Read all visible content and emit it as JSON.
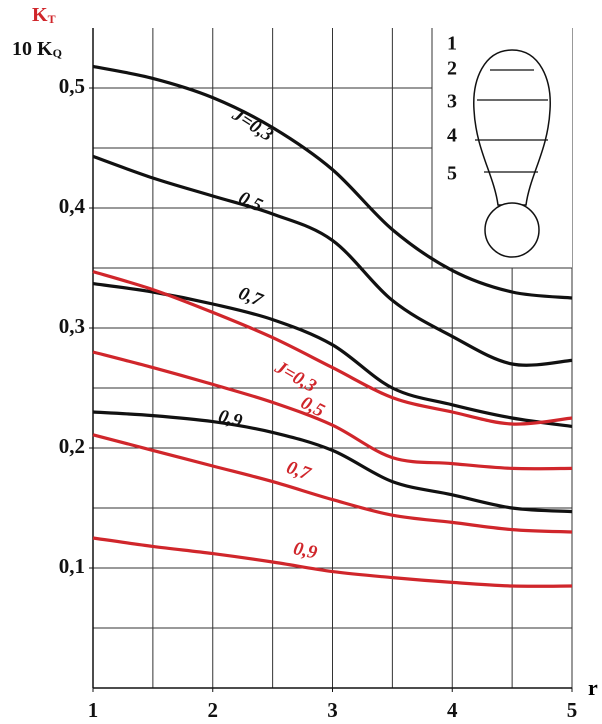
{
  "chart_data": {
    "type": "line",
    "y_label_kt": {
      "text": "K",
      "sub": "T",
      "color": "#d0262b"
    },
    "y_label_kq": {
      "text": "10 K",
      "sub": "Q",
      "color": "#111111"
    },
    "x_label": "r",
    "x": [
      1,
      1.5,
      2,
      2.5,
      3,
      3.5,
      4,
      4.5,
      5
    ],
    "xlim": [
      1,
      5
    ],
    "xticks": [
      1,
      2,
      3,
      4,
      5
    ],
    "x_grid": [
      1.5,
      2,
      2.5,
      3,
      3.5,
      4,
      4.5,
      5
    ],
    "ylim": [
      0,
      0.55
    ],
    "yticks": [
      {
        "value": 0.1,
        "label": "0,1"
      },
      {
        "value": 0.2,
        "label": "0,2"
      },
      {
        "value": 0.3,
        "label": "0,3"
      },
      {
        "value": 0.4,
        "label": "0,4"
      },
      {
        "value": 0.5,
        "label": "0,5"
      }
    ],
    "y_grid": [
      0.05,
      0.1,
      0.15,
      0.2,
      0.25,
      0.3,
      0.35,
      0.4,
      0.45,
      0.5
    ],
    "grid": true,
    "series": [
      {
        "name": "J=0,3",
        "color": "#111111",
        "values": [
          0.518,
          0.508,
          0.492,
          0.467,
          0.432,
          0.382,
          0.348,
          0.33,
          0.325
        ]
      },
      {
        "name": "0,5",
        "color": "#111111",
        "values": [
          0.443,
          0.425,
          0.41,
          0.395,
          0.373,
          0.323,
          0.293,
          0.27,
          0.273
        ]
      },
      {
        "name": "0,7",
        "color": "#111111",
        "values": [
          0.337,
          0.33,
          0.32,
          0.307,
          0.286,
          0.25,
          0.236,
          0.225,
          0.218
        ]
      },
      {
        "name": "0,9",
        "color": "#111111",
        "values": [
          0.23,
          0.227,
          0.222,
          0.213,
          0.198,
          0.172,
          0.161,
          0.15,
          0.147
        ]
      },
      {
        "name": "J=0,3",
        "color": "#d0262b",
        "values": [
          0.347,
          0.332,
          0.313,
          0.292,
          0.267,
          0.242,
          0.23,
          0.22,
          0.225
        ]
      },
      {
        "name": "0,5",
        "color": "#d0262b",
        "values": [
          0.28,
          0.267,
          0.253,
          0.238,
          0.219,
          0.192,
          0.187,
          0.183,
          0.183
        ]
      },
      {
        "name": "0,7",
        "color": "#d0262b",
        "values": [
          0.211,
          0.198,
          0.185,
          0.172,
          0.157,
          0.144,
          0.138,
          0.132,
          0.13
        ]
      },
      {
        "name": "0,9",
        "color": "#d0262b",
        "values": [
          0.125,
          0.118,
          0.112,
          0.105,
          0.097,
          0.092,
          0.088,
          0.085,
          0.085
        ]
      }
    ],
    "inset": {
      "labels": [
        "1",
        "2",
        "3",
        "4",
        "5"
      ]
    }
  }
}
